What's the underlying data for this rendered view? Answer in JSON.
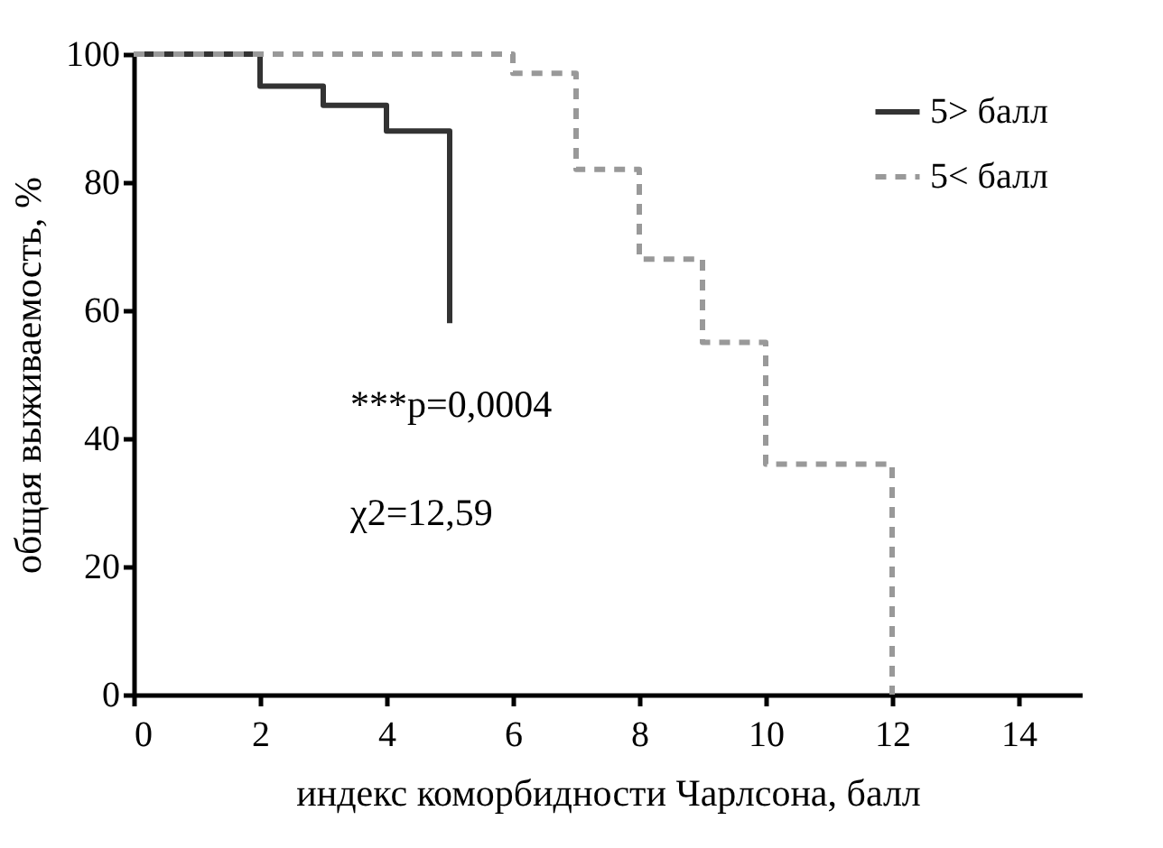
{
  "chart_data": {
    "type": "step",
    "xlabel": "индекс коморбидности Чарлсона, балл",
    "ylabel": "общая выживаемость, %",
    "xlim": [
      0,
      15
    ],
    "xticks": [
      0,
      2,
      4,
      6,
      8,
      10,
      12,
      14
    ],
    "ylim": [
      0,
      100
    ],
    "yticks": [
      0,
      20,
      40,
      60,
      80,
      100
    ],
    "grid": false,
    "legend": "top right",
    "series": [
      {
        "name": "5> балл",
        "color": "#333333",
        "line_style": "solid",
        "x": [
          0,
          2,
          3,
          4,
          5
        ],
        "values": [
          100,
          95,
          92,
          88,
          58
        ]
      },
      {
        "name": "5< балл",
        "color": "#999999",
        "line_style": "dashed",
        "x": [
          0,
          6,
          7,
          8,
          9,
          10,
          12
        ],
        "values": [
          100,
          97,
          82,
          68,
          55,
          36,
          0
        ]
      }
    ],
    "annotations": [
      "***p=0,0004",
      "χ2=12,59"
    ]
  }
}
